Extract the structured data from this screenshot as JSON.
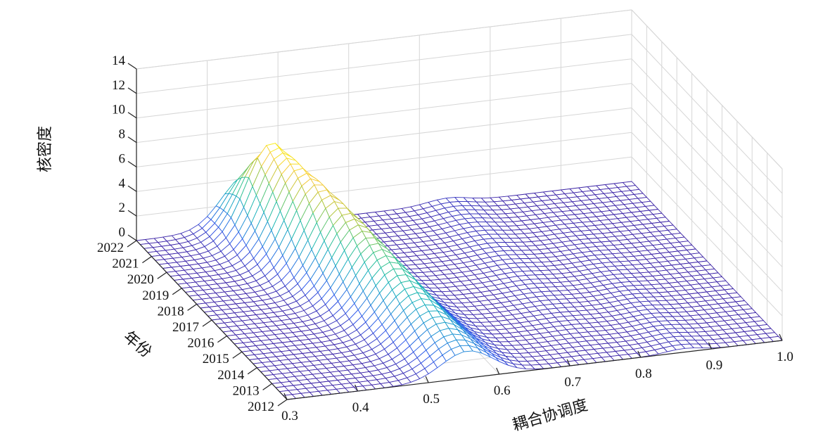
{
  "chart_data": {
    "type": "surface",
    "zlabel": "核密度",
    "xlabel": "耦合协调度",
    "ylabel": "年份",
    "x_ticks": [
      "0.3",
      "0.4",
      "0.5",
      "0.6",
      "0.7",
      "0.8",
      "0.9",
      "1.0"
    ],
    "y_ticks": [
      "2012",
      "2013",
      "2014",
      "2015",
      "2016",
      "2017",
      "2018",
      "2019",
      "2020",
      "2021",
      "2022"
    ],
    "z_ticks": [
      "0",
      "2",
      "4",
      "6",
      "8",
      "10",
      "12",
      "14"
    ],
    "xlim": [
      0.3,
      1.0
    ],
    "ylim": [
      2012,
      2022
    ],
    "zlim": [
      0,
      14
    ],
    "grid": true,
    "colormap": [
      "#3e26a8",
      "#2f59ec",
      "#1e8ed6",
      "#12b2b8",
      "#34c48a",
      "#a8c53a",
      "#f7c93b",
      "#f9fb14"
    ],
    "peaks": [
      {
        "year": 2012,
        "peak_x": 0.555,
        "peak_density": 2.2
      },
      {
        "year": 2013,
        "peak_x": 0.548,
        "peak_density": 2.8
      },
      {
        "year": 2014,
        "peak_x": 0.54,
        "peak_density": 3.5
      },
      {
        "year": 2015,
        "peak_x": 0.533,
        "peak_density": 4.2
      },
      {
        "year": 2016,
        "peak_x": 0.525,
        "peak_density": 5.0
      },
      {
        "year": 2017,
        "peak_x": 0.515,
        "peak_density": 5.8
      },
      {
        "year": 2018,
        "peak_x": 0.505,
        "peak_density": 6.5
      },
      {
        "year": 2019,
        "peak_x": 0.492,
        "peak_density": 7.2
      },
      {
        "year": 2020,
        "peak_x": 0.48,
        "peak_density": 7.7
      },
      {
        "year": 2021,
        "peak_x": 0.47,
        "peak_density": 8.1
      },
      {
        "year": 2022,
        "peak_x": 0.458,
        "peak_density": 4.4
      }
    ]
  }
}
